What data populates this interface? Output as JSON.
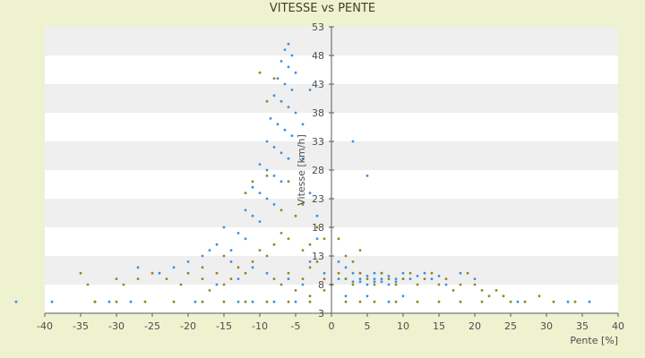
{
  "chart_data": {
    "type": "scatter",
    "title": "VITESSE vs PENTE",
    "xlabel": "Pente [%]",
    "ylabel": "Vitesse [km/h]",
    "xlim": [
      -40,
      40
    ],
    "ylim": [
      3,
      53
    ],
    "x_ticks": [
      -40,
      -35,
      -30,
      -25,
      -20,
      -15,
      -10,
      -5,
      0,
      5,
      10,
      15,
      20,
      25,
      30,
      35,
      40
    ],
    "y_ticks": [
      3,
      8,
      13,
      18,
      23,
      28,
      33,
      38,
      43,
      48,
      53
    ],
    "grid": "horizontal alternating bands",
    "legend": "none",
    "colors": {
      "background": "#eef2cf",
      "plot_band_light": "#ffffff",
      "plot_band_dark": "#efefef",
      "axis": "#5a5a5a",
      "series_blue": "#3d8fe0",
      "series_olive": "#8a8a1e"
    },
    "series": [
      {
        "color": "#3d8fe0",
        "points": [
          [
            -44,
            5
          ],
          [
            -39,
            5
          ],
          [
            -33,
            5
          ],
          [
            -31,
            5
          ],
          [
            -28,
            5
          ],
          [
            -19,
            5
          ],
          [
            -13,
            5
          ],
          [
            -11,
            5
          ],
          [
            -8,
            5
          ],
          [
            -5,
            5
          ],
          [
            -6,
            50
          ],
          [
            -6.5,
            49
          ],
          [
            -5.5,
            48
          ],
          [
            -7,
            47
          ],
          [
            -6,
            46
          ],
          [
            -5,
            45
          ],
          [
            -7.5,
            44
          ],
          [
            -6.5,
            43
          ],
          [
            -5.5,
            42
          ],
          [
            -8,
            41
          ],
          [
            -7,
            40
          ],
          [
            -6,
            39
          ],
          [
            -5,
            38
          ],
          [
            -8.5,
            37
          ],
          [
            -7.5,
            36
          ],
          [
            -6.5,
            35
          ],
          [
            -5.5,
            34
          ],
          [
            -9,
            33
          ],
          [
            -8,
            32
          ],
          [
            -7,
            31
          ],
          [
            -6,
            30
          ],
          [
            -10,
            29
          ],
          [
            -9,
            28
          ],
          [
            -8,
            27
          ],
          [
            -7,
            26
          ],
          [
            -11,
            25
          ],
          [
            -10,
            24
          ],
          [
            -9,
            23
          ],
          [
            -8,
            22
          ],
          [
            -12,
            21
          ],
          [
            -11,
            20
          ],
          [
            -10,
            19
          ],
          [
            -15,
            18
          ],
          [
            -13,
            17
          ],
          [
            -12,
            16
          ],
          [
            -16,
            15
          ],
          [
            -14,
            14
          ],
          [
            -18,
            13
          ],
          [
            -20,
            12
          ],
          [
            -22,
            11
          ],
          [
            -24,
            10
          ],
          [
            -27,
            11
          ],
          [
            -17,
            14
          ],
          [
            -14,
            12
          ],
          [
            -11,
            11
          ],
          [
            -9,
            10
          ],
          [
            -6,
            9
          ],
          [
            -4,
            8
          ],
          [
            -13,
            9
          ],
          [
            -16,
            8
          ],
          [
            -3,
            42
          ],
          [
            -4,
            36
          ],
          [
            -4,
            30
          ],
          [
            -3,
            24
          ],
          [
            -2,
            20
          ],
          [
            -2,
            16
          ],
          [
            -3,
            12
          ],
          [
            -1,
            10
          ],
          [
            3,
            33
          ],
          [
            5,
            27
          ],
          [
            1,
            12
          ],
          [
            2,
            11
          ],
          [
            3,
            10
          ],
          [
            4,
            9
          ],
          [
            5,
            9.5
          ],
          [
            6,
            10
          ],
          [
            7,
            9
          ],
          [
            8,
            9.5
          ],
          [
            9,
            9
          ],
          [
            10,
            10
          ],
          [
            11,
            9
          ],
          [
            12,
            9.5
          ],
          [
            13,
            10
          ],
          [
            14,
            9
          ],
          [
            15,
            9.5
          ],
          [
            3,
            8.5
          ],
          [
            5,
            8
          ],
          [
            7,
            8.5
          ],
          [
            2,
            9
          ],
          [
            4,
            10
          ],
          [
            6,
            8.5
          ],
          [
            8,
            8
          ],
          [
            1,
            9
          ],
          [
            9,
            8.5
          ],
          [
            10,
            9
          ],
          [
            6,
            9
          ],
          [
            4,
            8.5
          ],
          [
            7,
            10
          ],
          [
            18,
            10
          ],
          [
            20,
            9
          ],
          [
            16,
            8
          ],
          [
            26,
            5
          ],
          [
            33,
            5
          ],
          [
            36,
            5
          ],
          [
            10,
            6
          ],
          [
            8,
            5
          ],
          [
            2,
            6
          ],
          [
            5,
            6
          ]
        ]
      },
      {
        "color": "#8a8a1e",
        "points": [
          [
            -35,
            10
          ],
          [
            -34,
            8
          ],
          [
            -30,
            9
          ],
          [
            -29,
            8
          ],
          [
            -27,
            9
          ],
          [
            -25,
            10
          ],
          [
            -23,
            9
          ],
          [
            -21,
            8
          ],
          [
            -20,
            10
          ],
          [
            -18,
            9
          ],
          [
            -17,
            7
          ],
          [
            -16,
            10
          ],
          [
            -15,
            8
          ],
          [
            -14,
            9
          ],
          [
            -13,
            11
          ],
          [
            -12,
            10
          ],
          [
            -11,
            12
          ],
          [
            -10,
            14
          ],
          [
            -9,
            13
          ],
          [
            -8,
            15
          ],
          [
            -7,
            17
          ],
          [
            -6,
            16
          ],
          [
            -5,
            20
          ],
          [
            -4,
            14
          ],
          [
            -3,
            11
          ],
          [
            -2,
            12
          ],
          [
            -1,
            9
          ],
          [
            -10,
            45
          ],
          [
            -8,
            44
          ],
          [
            -9,
            40
          ],
          [
            -11,
            26
          ],
          [
            -12,
            24
          ],
          [
            -9,
            27
          ],
          [
            -7,
            21
          ],
          [
            -6,
            26
          ],
          [
            -4,
            22
          ],
          [
            -3,
            15
          ],
          [
            -2,
            18
          ],
          [
            -1,
            16
          ],
          [
            -15,
            13
          ],
          [
            -18,
            11
          ],
          [
            -8,
            9
          ],
          [
            -6,
            10
          ],
          [
            -4,
            9
          ],
          [
            -7,
            8
          ],
          [
            -5,
            7
          ],
          [
            -3,
            6
          ],
          [
            -1,
            7
          ],
          [
            0,
            8
          ],
          [
            1,
            10
          ],
          [
            2,
            9
          ],
          [
            3,
            8
          ],
          [
            4,
            10
          ],
          [
            5,
            9
          ],
          [
            6,
            8
          ],
          [
            7,
            10
          ],
          [
            8,
            9
          ],
          [
            9,
            8
          ],
          [
            10,
            9
          ],
          [
            11,
            10
          ],
          [
            12,
            8
          ],
          [
            13,
            9
          ],
          [
            14,
            10
          ],
          [
            15,
            8
          ],
          [
            16,
            9
          ],
          [
            17,
            7
          ],
          [
            18,
            8
          ],
          [
            19,
            10
          ],
          [
            20,
            8
          ],
          [
            21,
            7
          ],
          [
            22,
            6
          ],
          [
            23,
            7
          ],
          [
            24,
            6
          ],
          [
            25,
            5
          ],
          [
            27,
            5
          ],
          [
            29,
            6
          ],
          [
            31,
            5
          ],
          [
            34,
            5
          ],
          [
            -33,
            5
          ],
          [
            -30,
            5
          ],
          [
            -26,
            5
          ],
          [
            -22,
            5
          ],
          [
            -18,
            5
          ],
          [
            -15,
            5
          ],
          [
            -12,
            5
          ],
          [
            -9,
            5
          ],
          [
            -6,
            5
          ],
          [
            -3,
            5
          ],
          [
            2,
            5
          ],
          [
            4,
            5
          ],
          [
            6,
            5
          ],
          [
            9,
            5
          ],
          [
            12,
            5
          ],
          [
            15,
            5
          ],
          [
            18,
            5
          ],
          [
            21,
            5
          ],
          [
            1,
            16
          ],
          [
            2,
            13
          ],
          [
            4,
            14
          ],
          [
            3,
            12
          ]
        ]
      }
    ]
  }
}
